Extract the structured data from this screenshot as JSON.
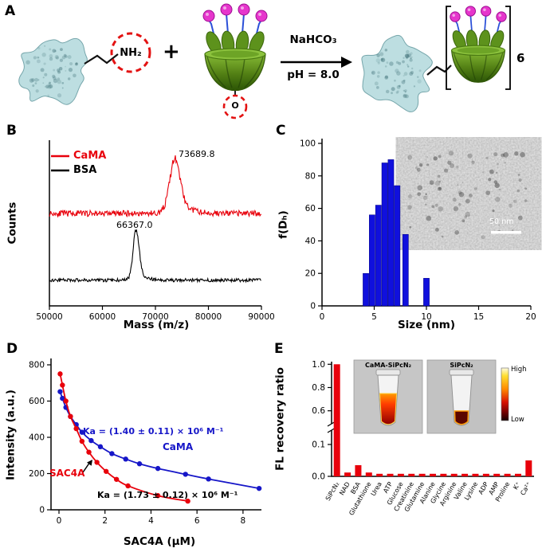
{
  "panel_labels": {
    "a": "A",
    "b": "B",
    "c": "C",
    "d": "D",
    "e": "E"
  },
  "panel_a": {
    "nh2": "NH₂",
    "plus": "+",
    "cond_top": "NaHCO₃",
    "cond_bottom": "pH = 8.0",
    "o_label": "O",
    "count_label": "6"
  },
  "chart_data": [
    {
      "id": "maldi-ms",
      "type": "line",
      "panel": "B",
      "xlabel": "Mass (m/z)",
      "ylabel": "Counts",
      "x_range": [
        50000,
        90000
      ],
      "x_ticks": [
        50000,
        60000,
        70000,
        80000,
        90000
      ],
      "series": [
        {
          "name": "CaMA",
          "color": "#e8000b",
          "peak_mz": 73689.8,
          "peak_label": "73689.8",
          "baseline": 0.558,
          "amplitude": 0.3,
          "peak_width": 1400,
          "noise": 0.018,
          "seed": 11
        },
        {
          "name": "BSA",
          "color": "#000000",
          "peak_mz": 66367.0,
          "peak_label": "66367.0",
          "baseline": 0.155,
          "amplitude": 0.275,
          "peak_width": 800,
          "noise": 0.01,
          "seed": 23
        }
      ]
    },
    {
      "id": "dls-histogram",
      "type": "bar",
      "panel": "C",
      "xlabel": "Size (nm)",
      "ylabel": "f(Dₕ)",
      "x_range": [
        0,
        20
      ],
      "y_range": [
        0,
        100
      ],
      "x_ticks": [
        0,
        5,
        10,
        15,
        20
      ],
      "y_ticks": [
        0,
        20,
        40,
        60,
        80,
        100
      ],
      "bar_color": "#1010dd",
      "bin_width": 0.55,
      "centers": [
        4.2,
        4.8,
        5.4,
        6.0,
        6.6,
        7.2,
        8.0,
        10.0
      ],
      "heights": [
        20,
        56,
        62,
        88,
        90,
        74,
        44,
        17
      ],
      "inset_scale_bar": "50 nm"
    },
    {
      "id": "titration",
      "type": "scatter",
      "panel": "D",
      "xlabel": "SAC4A (µM)",
      "ylabel": "Intensity (a.u.)",
      "x_range": [
        0,
        9
      ],
      "y_range": [
        0,
        800
      ],
      "x_ticks": [
        0,
        2,
        4,
        6,
        8
      ],
      "y_ticks": [
        0,
        200,
        400,
        600,
        800
      ],
      "series": [
        {
          "name": "SAC4A",
          "color": "#e8000b",
          "ka_label": "Ka = (1.73 ± 0.12) × 10⁶ M⁻¹",
          "x": [
            0.05,
            0.15,
            0.3,
            0.5,
            0.75,
            1.0,
            1.3,
            1.65,
            2.05,
            2.5,
            3.0,
            4.3,
            5.6
          ],
          "y": [
            750,
            688,
            600,
            515,
            448,
            378,
            318,
            262,
            212,
            168,
            132,
            78,
            48
          ]
        },
        {
          "name": "CaMA",
          "color": "#1616c8",
          "ka_label": "Ka = (1.40 ± 0.11) × 10⁶ M⁻¹",
          "x": [
            0.05,
            0.15,
            0.3,
            0.5,
            0.75,
            1.0,
            1.4,
            1.8,
            2.3,
            2.9,
            3.5,
            4.3,
            5.5,
            6.5,
            8.7
          ],
          "y": [
            652,
            615,
            565,
            515,
            470,
            428,
            382,
            348,
            310,
            280,
            254,
            228,
            196,
            170,
            118
          ]
        }
      ]
    },
    {
      "id": "selectivity",
      "type": "bar",
      "panel": "E",
      "ylabel": "FL recovery ratio",
      "bar_color": "#e8000b",
      "y_ticks_top": [
        "0.6",
        "0.8",
        "1.0"
      ],
      "y_ticks_bottom": [
        "0.0",
        "0.1"
      ],
      "categories": [
        "SiPcN₂",
        "NAD",
        "BSA",
        "Glutathione",
        "Urea",
        "ATP",
        "Glucose",
        "Creatinine",
        "Glutamine",
        "Alanine",
        "Glycine",
        "Arginine",
        "Valine",
        "Lysine",
        "ADP",
        "AMP",
        "Proline",
        "K⁺",
        "Ca²⁺"
      ],
      "values": [
        1.0,
        0.012,
        0.035,
        0.012,
        0.008,
        0.008,
        0.008,
        0.008,
        0.008,
        0.008,
        0.008,
        0.008,
        0.008,
        0.008,
        0.008,
        0.008,
        0.008,
        0.008,
        0.05
      ],
      "inset": {
        "left_label": "CaMA-SiPcN₂",
        "right_label": "SiPcN₂",
        "scale_high": "High",
        "scale_low": "Low"
      }
    }
  ]
}
